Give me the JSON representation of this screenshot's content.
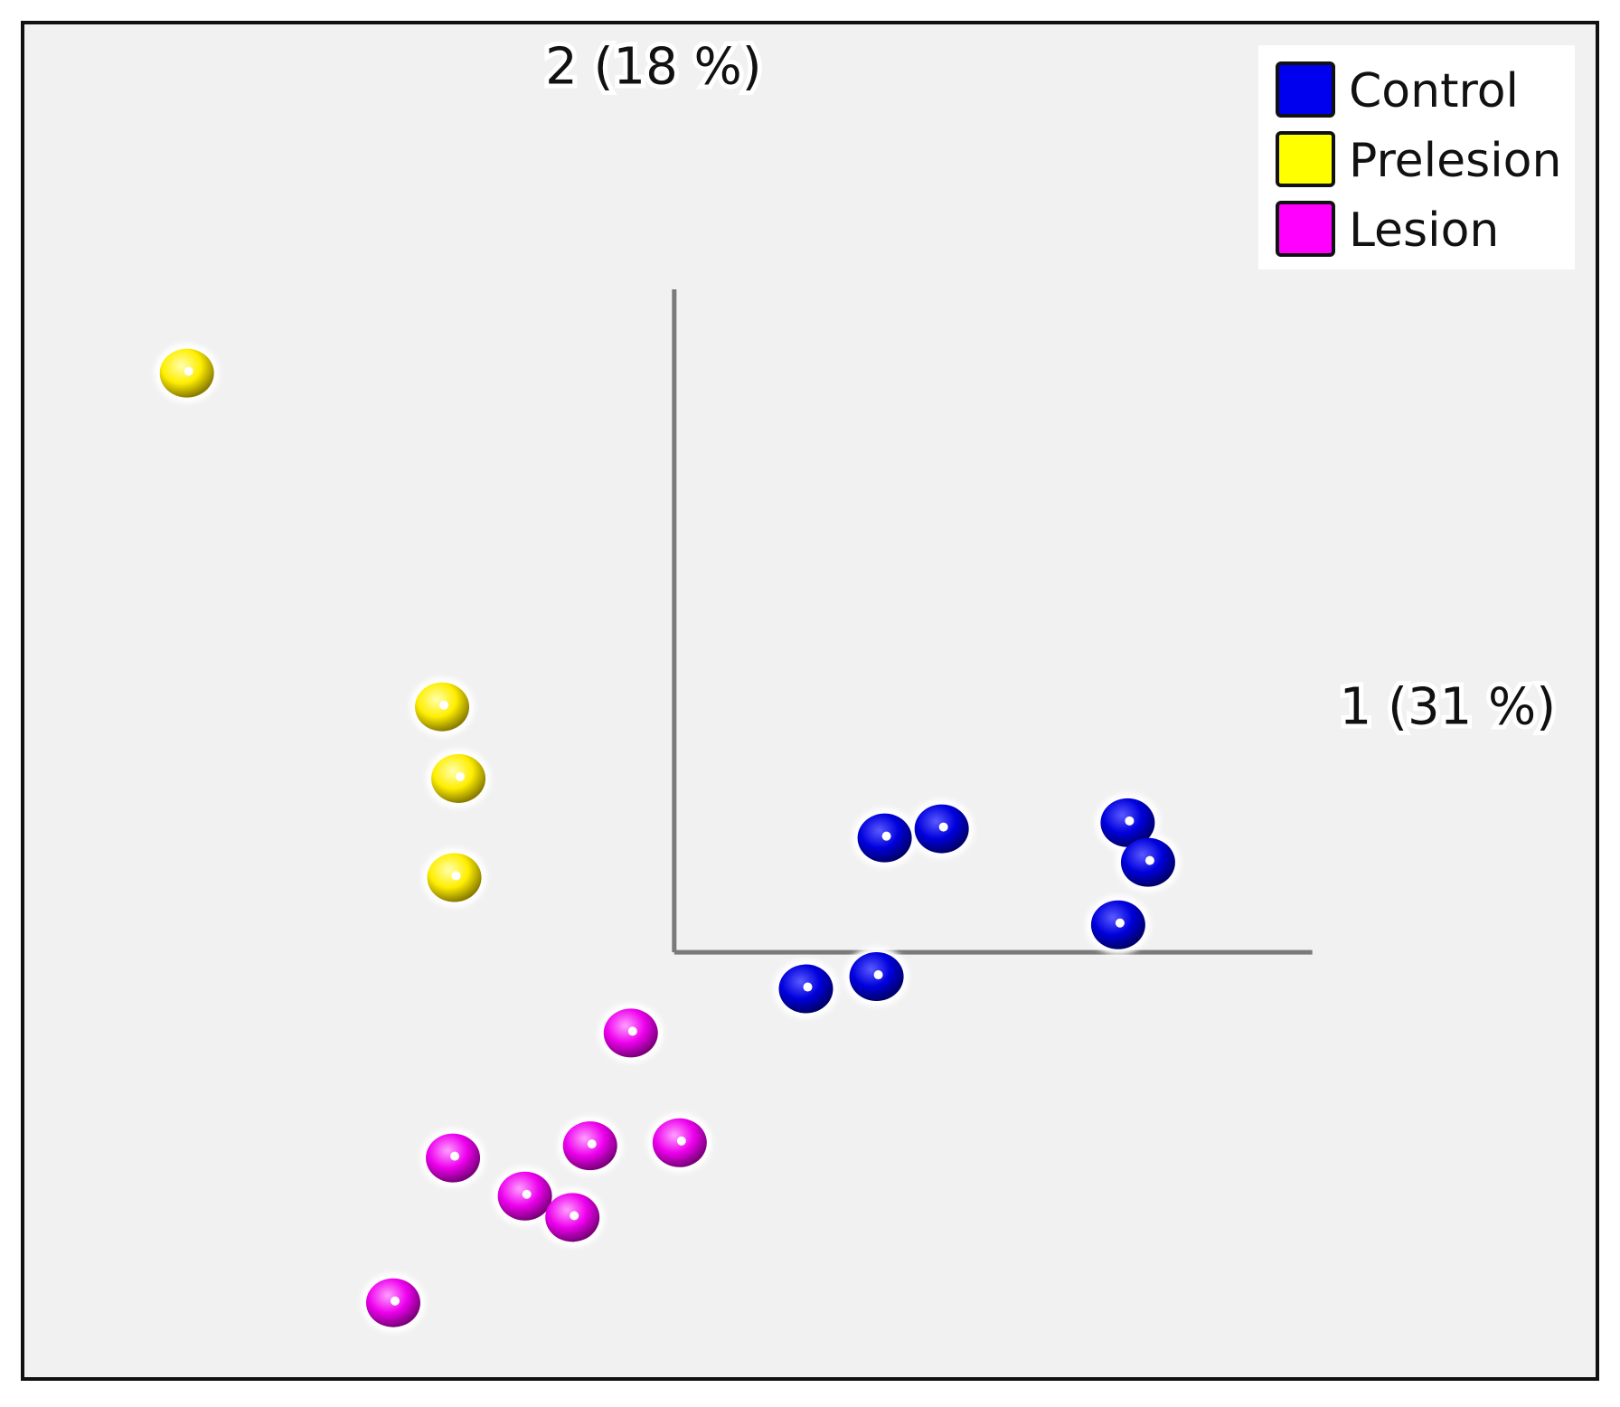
{
  "chart_data": {
    "type": "scatter",
    "axes": {
      "x_label": "1 (31 %)",
      "y_label": "2 (18 %)",
      "xlim": [
        -4.8,
        6.8
      ],
      "ylim": [
        -2.8,
        6.1
      ]
    },
    "grid": false,
    "legend_position": "top-right",
    "series": [
      {
        "name": "Control",
        "color": "#0000ee",
        "points": [
          [
            1.55,
            0.75
          ],
          [
            1.97,
            0.81
          ],
          [
            3.27,
            0.18
          ],
          [
            3.34,
            0.85
          ],
          [
            3.49,
            0.59
          ],
          [
            0.97,
            -0.24
          ],
          [
            1.49,
            -0.16
          ]
        ]
      },
      {
        "name": "Prelesion",
        "color": "#ffff00",
        "points": [
          [
            -3.59,
            3.8
          ],
          [
            -1.71,
            1.61
          ],
          [
            -1.59,
            1.14
          ],
          [
            -1.62,
            0.49
          ]
        ]
      },
      {
        "name": "Lesion",
        "color": "#ff00ff",
        "points": [
          [
            -0.32,
            -0.53
          ],
          [
            -1.63,
            -1.35
          ],
          [
            -1.1,
            -1.6
          ],
          [
            -0.62,
            -1.27
          ],
          [
            0.04,
            -1.25
          ],
          [
            -0.75,
            -1.74
          ],
          [
            -2.07,
            -2.3
          ]
        ]
      }
    ]
  }
}
